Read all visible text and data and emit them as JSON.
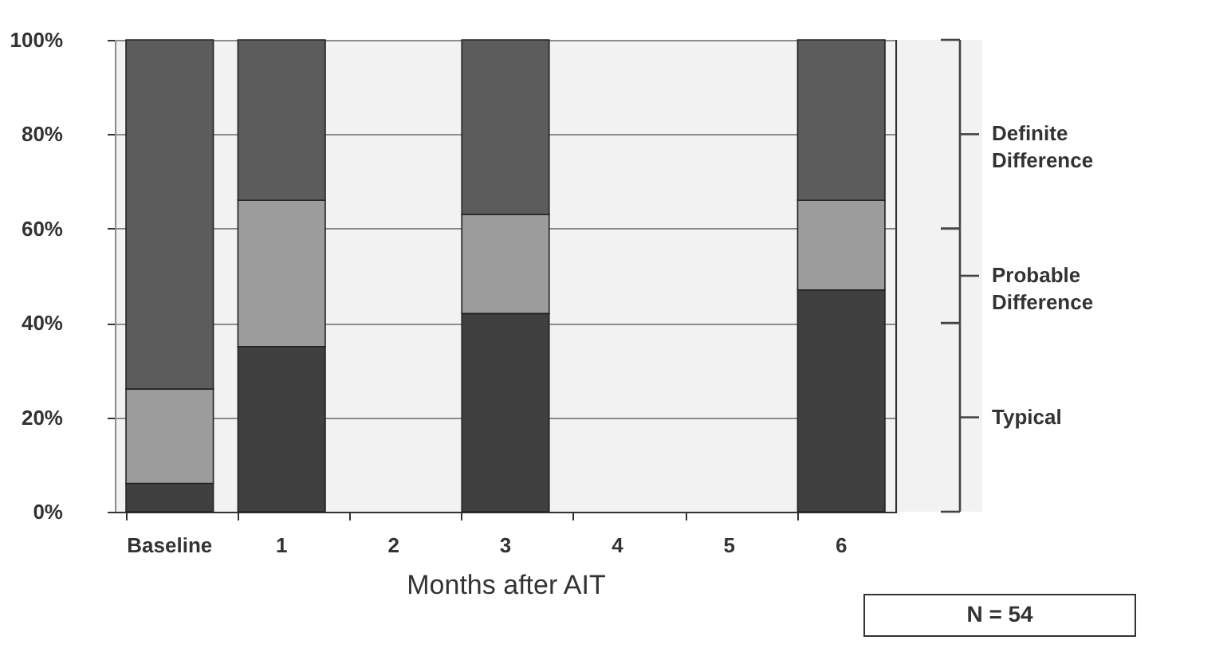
{
  "chart_data": {
    "type": "bar",
    "stacked": true,
    "xlabel": "Months after AIT",
    "categories": [
      "Baseline",
      "1",
      "2",
      "3",
      "4",
      "5",
      "6"
    ],
    "series": [
      {
        "color": "#404040",
        "values": [
          6,
          35,
          null,
          42,
          null,
          null,
          47
        ]
      },
      {
        "color": "#9c9c9c",
        "values": [
          20,
          31,
          null,
          21,
          null,
          null,
          19
        ]
      },
      {
        "color": "#5c5c5c",
        "values": [
          74,
          34,
          null,
          37,
          null,
          null,
          34
        ]
      }
    ],
    "ylim": [
      0,
      100
    ],
    "yticks": [
      {
        "value": 0,
        "label": "0%"
      },
      {
        "value": 20,
        "label": "20%"
      },
      {
        "value": 40,
        "label": "40%"
      },
      {
        "value": 60,
        "label": "60%"
      },
      {
        "value": 80,
        "label": "80%"
      },
      {
        "value": 100,
        "label": "100%"
      }
    ],
    "grid": "y",
    "bands": [
      {
        "axis": "y",
        "from": 0,
        "to": 40,
        "label": "Typical"
      },
      {
        "axis": "y",
        "from": 40,
        "to": 60,
        "label": "Probable Difference"
      },
      {
        "axis": "y",
        "from": 60,
        "to": 100,
        "label": "Definite Difference"
      }
    ],
    "annotations": [
      "N = 54"
    ]
  }
}
